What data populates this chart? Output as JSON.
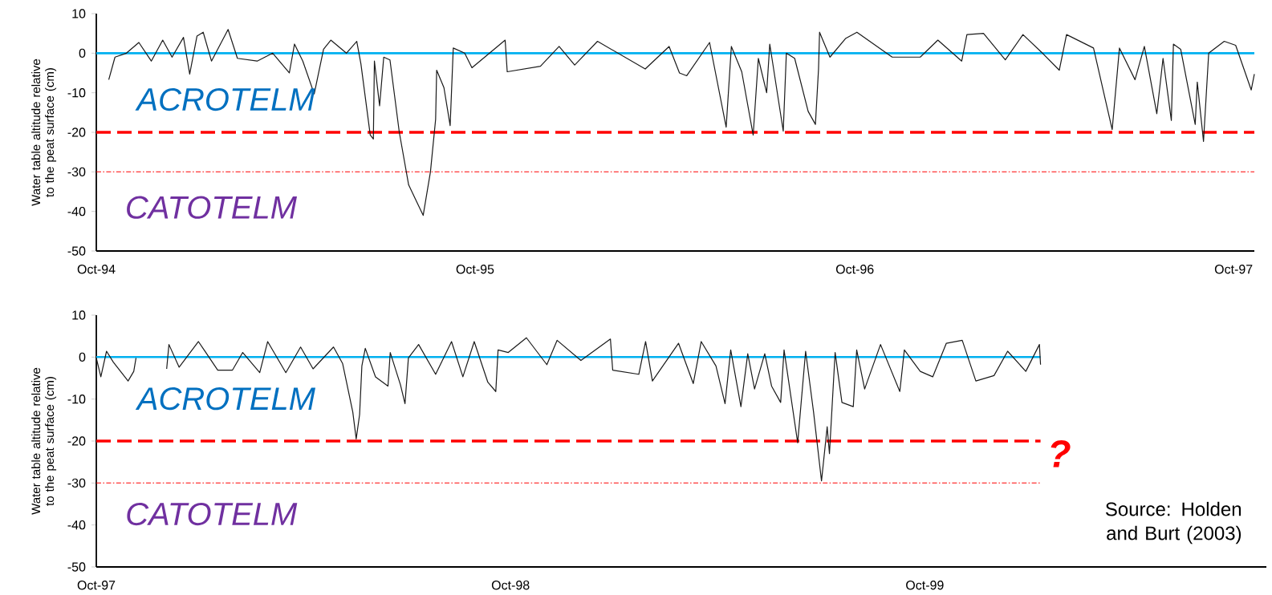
{
  "chart_data": [
    {
      "type": "line",
      "ylabel": "Water table altitude relative to the peat surface (cm)",
      "color": "#1a1a1a",
      "xlim": [
        "1994-10-01",
        "1997-10-21"
      ],
      "xticks": [
        {
          "value": "1994-10",
          "label": "Oct-94"
        },
        {
          "value": "1995-10",
          "label": "Oct-95"
        },
        {
          "value": "1996-10",
          "label": "Oct-96"
        },
        {
          "value": "1997-10",
          "label": "Oct-97"
        }
      ],
      "ylim": [
        -50,
        10
      ],
      "yticks": [
        -50,
        -40,
        -30,
        -20,
        -10,
        0,
        10
      ],
      "x": [
        "1994-10-13",
        "1994-10-19",
        "1994-10-30",
        "1994-11-11",
        "1994-11-23",
        "1994-12-04",
        "1994-12-13",
        "1994-12-24",
        "1994-12-30",
        "1995-01-06",
        "1995-01-12",
        "1995-01-20",
        "1995-02-05",
        "1995-02-14",
        "1995-03-05",
        "1995-03-20",
        "1995-04-05",
        "1995-04-10",
        "1995-04-18",
        "1995-04-29",
        "1995-05-08",
        "1995-05-15",
        "1995-05-30",
        "1995-06-09",
        "1995-06-13",
        "1995-06-22",
        "1995-06-25",
        "1995-06-26",
        "1995-07-01",
        "1995-07-05",
        "1995-07-11",
        "1995-07-20",
        "1995-07-29",
        "1995-08-12",
        "1995-08-19",
        "1995-08-24",
        "1995-08-25",
        "1995-09-01",
        "1995-09-07",
        "1995-09-10",
        "1995-09-21",
        "1995-09-28",
        "1995-10-30",
        "1995-11-01",
        "1995-12-03",
        "1995-12-21",
        "1996-01-05",
        "1996-01-27",
        "1996-03-13",
        "1996-04-05",
        "1996-04-15",
        "1996-04-22",
        "1996-05-14",
        "1996-05-30",
        "1996-06-04",
        "1996-06-14",
        "1996-06-25",
        "1996-06-30",
        "1996-07-08",
        "1996-07-11",
        "1996-07-24",
        "1996-07-27",
        "1996-08-04",
        "1996-08-17",
        "1996-08-24",
        "1996-08-27",
        "1996-08-28",
        "1996-09-07",
        "1996-09-22",
        "1996-10-03",
        "1996-11-06",
        "1996-12-03",
        "1996-12-20",
        "1997-01-12",
        "1997-01-17",
        "1997-02-02",
        "1997-02-23",
        "1997-03-12",
        "1997-04-01",
        "1997-04-16",
        "1997-04-23",
        "1997-05-19",
        "1997-06-06",
        "1997-06-13",
        "1997-06-28",
        "1997-07-07",
        "1997-07-19",
        "1997-07-25",
        "1997-08-02",
        "1997-08-04",
        "1997-08-11",
        "1997-08-25",
        "1997-08-27",
        "1997-09-02",
        "1997-09-07",
        "1997-09-22",
        "1997-10-03",
        "1997-10-18",
        "1997-10-21"
      ],
      "values": [
        -6.7,
        -1,
        0,
        2.7,
        -2,
        3.3,
        -1,
        4,
        -5.3,
        4.3,
        5.3,
        -2,
        6,
        -1.3,
        -2,
        0,
        -5,
        2.3,
        -2,
        -10.3,
        1,
        3.3,
        0,
        3,
        -2.7,
        -20.7,
        -21.7,
        -2,
        -13.3,
        -1,
        -1.7,
        -20,
        -33.3,
        -41,
        -30,
        -16.7,
        -4.3,
        -8.7,
        -18.3,
        1.3,
        0,
        -3.7,
        3.3,
        -4.7,
        -3.3,
        1.7,
        -3,
        3,
        -4,
        1.7,
        -5,
        -5.7,
        2.7,
        -18.7,
        1.7,
        -4.7,
        -20.7,
        -1.3,
        -10,
        2.3,
        -19.7,
        0,
        -1.3,
        -14.7,
        -18,
        -4,
        5.3,
        -1,
        3.7,
        5.3,
        -1,
        -1,
        3.3,
        -2,
        4.7,
        5,
        -1.7,
        4.7,
        -0.3,
        -4.3,
        4.7,
        1.3,
        -19.3,
        1.3,
        -6.7,
        1.7,
        -15.3,
        -1.3,
        -17,
        2.3,
        1,
        -18,
        -7.3,
        -22.3,
        0,
        3,
        2,
        -9.3,
        -5.3
      ],
      "ref_lines": [
        {
          "axis": "y",
          "value": 0,
          "color": "#00b0f0",
          "line_style": "solid"
        },
        {
          "axis": "y",
          "value": -20,
          "color": "#ff0000",
          "line_style": "dashed"
        },
        {
          "axis": "y",
          "value": -30,
          "color": "#ff0000",
          "line_style": "dotted"
        }
      ],
      "annotations": [
        "ACROTELM",
        "CATOTELM"
      ]
    },
    {
      "type": "line",
      "ylabel": "Water table altitude relative to the peat surface (cm)",
      "color": "#1a1a1a",
      "xlim": [
        "1997-10-01",
        "2000-07-28"
      ],
      "xticks": [
        {
          "value": "1997-10",
          "label": "Oct-97"
        },
        {
          "value": "1998-10",
          "label": "Oct-98"
        },
        {
          "value": "1999-10",
          "label": "Oct-99"
        }
      ],
      "ylim": [
        -50,
        10
      ],
      "yticks": [
        -50,
        -40,
        -30,
        -20,
        -10,
        0,
        10
      ],
      "x": [
        "1997-10-01",
        "1997-10-05",
        "1997-10-10",
        "1997-10-16",
        "1997-10-29",
        "1997-11-03",
        "1997-11-05",
        "1997-11-20",
        "1997-12-02",
        "1997-12-04",
        "1997-12-13",
        "1997-12-30",
        "1998-01-16",
        "1998-01-29",
        "1998-02-07",
        "1998-02-22",
        "1998-03-01",
        "1998-03-17",
        "1998-03-30",
        "1998-04-10",
        "1998-04-28",
        "1998-05-06",
        "1998-05-15",
        "1998-05-18",
        "1998-05-21",
        "1998-05-23",
        "1998-05-26",
        "1998-06-04",
        "1998-06-15",
        "1998-06-17",
        "1998-06-26",
        "1998-06-30",
        "1998-07-03",
        "1998-07-12",
        "1998-07-27",
        "1998-08-10",
        "1998-08-20",
        "1998-08-30",
        "1998-09-11",
        "1998-09-18",
        "1998-09-20",
        "1998-09-29",
        "1998-10-15",
        "1998-11-02",
        "1998-11-11",
        "1998-12-02",
        "1998-12-28",
        "1998-12-30",
        "1999-01-22",
        "1999-01-28",
        "1999-02-03",
        "1999-02-26",
        "1999-03-11",
        "1999-03-18",
        "1999-03-31",
        "1999-04-08",
        "1999-04-13",
        "1999-04-22",
        "1999-04-28",
        "1999-05-04",
        "1999-05-13",
        "1999-05-19",
        "1999-05-27",
        "1999-05-30",
        "1999-06-11",
        "1999-06-18",
        "1999-06-25",
        "1999-07-02",
        "1999-07-07",
        "1999-07-09",
        "1999-07-14",
        "1999-07-20",
        "1999-07-30",
        "1999-08-02",
        "1999-08-09",
        "1999-08-23",
        "1999-09-09",
        "1999-09-13",
        "1999-09-27",
        "1999-10-08",
        "1999-10-20",
        "1999-11-03",
        "1999-11-15",
        "1999-12-01",
        "1999-12-13",
        "1999-12-29",
        "2000-01-10",
        "2000-01-11"
      ],
      "values": [
        -0.2,
        -4.7,
        1.4,
        -1.2,
        -5.7,
        -3.4,
        -0.2,
        null,
        -2.8,
        3,
        -2.4,
        3.7,
        -3.1,
        -3.1,
        1.1,
        -3.7,
        3.7,
        -3.7,
        2.4,
        -2.8,
        2.4,
        -1.5,
        -13.1,
        -19.5,
        -13.7,
        -2.1,
        2.1,
        -4.7,
        -6.9,
        1.1,
        -6.6,
        -11.1,
        -0.2,
        3,
        -4.1,
        3.7,
        -4.7,
        3.7,
        -6,
        -8.2,
        1.7,
        1.1,
        4.6,
        -1.8,
        4,
        -0.8,
        4.3,
        -3.1,
        -4.1,
        3.7,
        -5.7,
        3.3,
        -6.3,
        3.7,
        -2.1,
        -11.1,
        1.7,
        -11.8,
        0.8,
        -7.6,
        0.8,
        -6.9,
        -10.8,
        1.7,
        -20.4,
        1.4,
        -13.1,
        -29.5,
        -16.6,
        -23,
        1.1,
        -10.8,
        -11.8,
        1.7,
        -7.6,
        3,
        -8.2,
        1.7,
        -3.4,
        -4.7,
        3.3,
        4,
        -5.7,
        -4.4,
        1.4,
        -3.4,
        3,
        -1.8
      ],
      "ref_lines": [
        {
          "axis": "y",
          "value": 0,
          "color": "#00b0f0",
          "line_style": "solid"
        },
        {
          "axis": "y",
          "value": -20,
          "color": "#ff0000",
          "line_style": "dashed"
        },
        {
          "axis": "y",
          "value": -30,
          "color": "#ff0000",
          "line_style": "dotted"
        }
      ],
      "annotations": [
        "ACROTELM",
        "CATOTELM",
        "?",
        "Source: Holden and Burt (2003)"
      ]
    }
  ]
}
